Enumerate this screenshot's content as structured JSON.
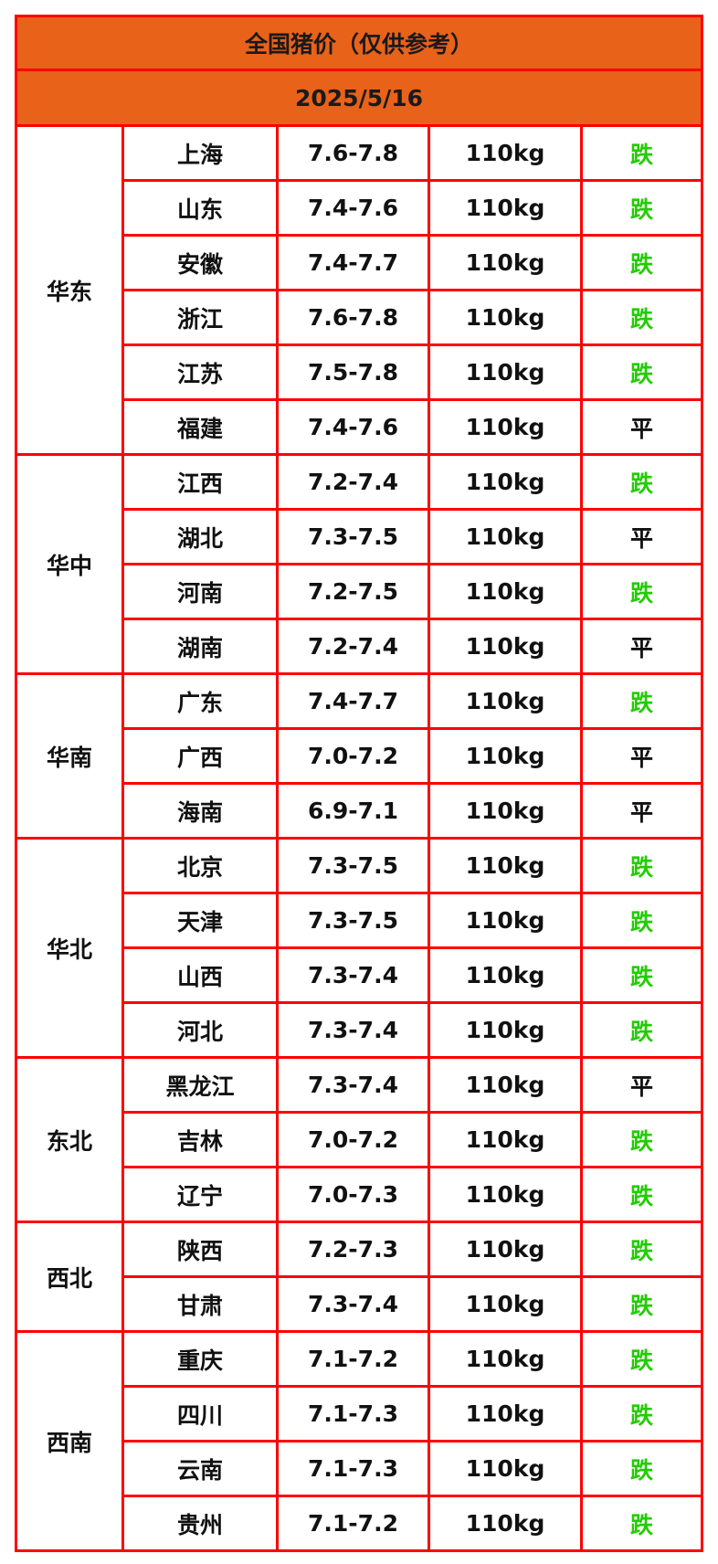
{
  "title": "全国猪价（仅供参考）",
  "date": "2025/5/16",
  "colors": {
    "header_bg": "#e8621a",
    "border": "#ff0000",
    "down": "#22cc00"
  },
  "regions": [
    {
      "name": "华东",
      "rows": [
        {
          "province": "上海",
          "price": "7.6-7.8",
          "weight": "110kg",
          "trend": "跌"
        },
        {
          "province": "山东",
          "price": "7.4-7.6",
          "weight": "110kg",
          "trend": "跌"
        },
        {
          "province": "安徽",
          "price": "7.4-7.7",
          "weight": "110kg",
          "trend": "跌"
        },
        {
          "province": "浙江",
          "price": "7.6-7.8",
          "weight": "110kg",
          "trend": "跌"
        },
        {
          "province": "江苏",
          "price": "7.5-7.8",
          "weight": "110kg",
          "trend": "跌"
        },
        {
          "province": "福建",
          "price": "7.4-7.6",
          "weight": "110kg",
          "trend": "平"
        }
      ]
    },
    {
      "name": "华中",
      "rows": [
        {
          "province": "江西",
          "price": "7.2-7.4",
          "weight": "110kg",
          "trend": "跌"
        },
        {
          "province": "湖北",
          "price": "7.3-7.5",
          "weight": "110kg",
          "trend": "平"
        },
        {
          "province": "河南",
          "price": "7.2-7.5",
          "weight": "110kg",
          "trend": "跌"
        },
        {
          "province": "湖南",
          "price": "7.2-7.4",
          "weight": "110kg",
          "trend": "平"
        }
      ]
    },
    {
      "name": "华南",
      "rows": [
        {
          "province": "广东",
          "price": "7.4-7.7",
          "weight": "110kg",
          "trend": "跌"
        },
        {
          "province": "广西",
          "price": "7.0-7.2",
          "weight": "110kg",
          "trend": "平"
        },
        {
          "province": "海南",
          "price": "6.9-7.1",
          "weight": "110kg",
          "trend": "平"
        }
      ]
    },
    {
      "name": "华北",
      "rows": [
        {
          "province": "北京",
          "price": "7.3-7.5",
          "weight": "110kg",
          "trend": "跌"
        },
        {
          "province": "天津",
          "price": "7.3-7.5",
          "weight": "110kg",
          "trend": "跌"
        },
        {
          "province": "山西",
          "price": "7.3-7.4",
          "weight": "110kg",
          "trend": "跌"
        },
        {
          "province": "河北",
          "price": "7.3-7.4",
          "weight": "110kg",
          "trend": "跌"
        }
      ]
    },
    {
      "name": "东北",
      "rows": [
        {
          "province": "黑龙江",
          "price": "7.3-7.4",
          "weight": "110kg",
          "trend": "平"
        },
        {
          "province": "吉林",
          "price": "7.0-7.2",
          "weight": "110kg",
          "trend": "跌"
        },
        {
          "province": "辽宁",
          "price": "7.0-7.3",
          "weight": "110kg",
          "trend": "跌"
        }
      ]
    },
    {
      "name": "西北",
      "rows": [
        {
          "province": "陕西",
          "price": "7.2-7.3",
          "weight": "110kg",
          "trend": "跌"
        },
        {
          "province": "甘肃",
          "price": "7.3-7.4",
          "weight": "110kg",
          "trend": "跌"
        }
      ]
    },
    {
      "name": "西南",
      "rows": [
        {
          "province": "重庆",
          "price": "7.1-7.2",
          "weight": "110kg",
          "trend": "跌"
        },
        {
          "province": "四川",
          "price": "7.1-7.3",
          "weight": "110kg",
          "trend": "跌"
        },
        {
          "province": "云南",
          "price": "7.1-7.3",
          "weight": "110kg",
          "trend": "跌"
        },
        {
          "province": "贵州",
          "price": "7.1-7.2",
          "weight": "110kg",
          "trend": "跌"
        }
      ]
    }
  ]
}
